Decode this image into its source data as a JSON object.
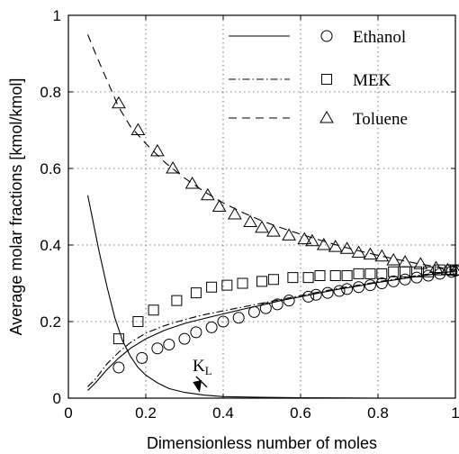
{
  "chart_data": {
    "type": "line",
    "title": "",
    "xlabel": "Dimensionless number of moles",
    "ylabel": "Average molar fractions [kmol/kmol]",
    "xlim": [
      0,
      1
    ],
    "ylim": [
      0,
      1
    ],
    "xticks": [
      "0",
      "0.2",
      "0.4",
      "0.6",
      "0.8",
      "1"
    ],
    "yticks": [
      "0",
      "0.2",
      "0.4",
      "0.6",
      "0.8",
      "1"
    ],
    "grid": true,
    "legend_position": "top-right",
    "legend": [
      {
        "name": "Ethanol",
        "line": "solid",
        "marker": "circle"
      },
      {
        "name": "MEK",
        "line": "dash-dot",
        "marker": "square"
      },
      {
        "name": "Toluene",
        "line": "dashed",
        "marker": "triangle"
      }
    ],
    "series": [
      {
        "name": "Ethanol",
        "kind": "model",
        "line": "solid",
        "points": [
          [
            0.05,
            0.02
          ],
          [
            0.07,
            0.04
          ],
          [
            0.1,
            0.075
          ],
          [
            0.13,
            0.105
          ],
          [
            0.16,
            0.13
          ],
          [
            0.2,
            0.155
          ],
          [
            0.25,
            0.178
          ],
          [
            0.3,
            0.195
          ],
          [
            0.35,
            0.208
          ],
          [
            0.4,
            0.22
          ],
          [
            0.45,
            0.232
          ],
          [
            0.5,
            0.243
          ],
          [
            0.55,
            0.255
          ],
          [
            0.6,
            0.265
          ],
          [
            0.65,
            0.275
          ],
          [
            0.7,
            0.285
          ],
          [
            0.75,
            0.293
          ],
          [
            0.8,
            0.302
          ],
          [
            0.85,
            0.31
          ],
          [
            0.9,
            0.318
          ],
          [
            0.95,
            0.325
          ],
          [
            1.0,
            0.332
          ]
        ]
      },
      {
        "name": "MEK",
        "kind": "model",
        "line": "dash-dot",
        "points": [
          [
            0.05,
            0.03
          ],
          [
            0.07,
            0.05
          ],
          [
            0.1,
            0.09
          ],
          [
            0.13,
            0.12
          ],
          [
            0.16,
            0.145
          ],
          [
            0.2,
            0.17
          ],
          [
            0.25,
            0.19
          ],
          [
            0.3,
            0.205
          ],
          [
            0.35,
            0.218
          ],
          [
            0.4,
            0.228
          ],
          [
            0.45,
            0.238
          ],
          [
            0.5,
            0.248
          ],
          [
            0.55,
            0.258
          ],
          [
            0.6,
            0.268
          ],
          [
            0.65,
            0.278
          ],
          [
            0.7,
            0.287
          ],
          [
            0.75,
            0.295
          ],
          [
            0.8,
            0.304
          ],
          [
            0.85,
            0.312
          ],
          [
            0.9,
            0.32
          ],
          [
            0.95,
            0.327
          ],
          [
            1.0,
            0.333
          ]
        ]
      },
      {
        "name": "Toluene",
        "kind": "model",
        "line": "dashed",
        "points": [
          [
            0.05,
            0.95
          ],
          [
            0.07,
            0.9
          ],
          [
            0.1,
            0.83
          ],
          [
            0.13,
            0.76
          ],
          [
            0.16,
            0.71
          ],
          [
            0.2,
            0.665
          ],
          [
            0.25,
            0.615
          ],
          [
            0.3,
            0.575
          ],
          [
            0.35,
            0.54
          ],
          [
            0.4,
            0.51
          ],
          [
            0.45,
            0.485
          ],
          [
            0.5,
            0.463
          ],
          [
            0.55,
            0.445
          ],
          [
            0.6,
            0.428
          ],
          [
            0.65,
            0.413
          ],
          [
            0.7,
            0.398
          ],
          [
            0.75,
            0.385
          ],
          [
            0.8,
            0.373
          ],
          [
            0.85,
            0.362
          ],
          [
            0.9,
            0.352
          ],
          [
            0.95,
            0.343
          ],
          [
            1.0,
            0.335
          ]
        ]
      },
      {
        "name": "KL",
        "kind": "model",
        "line": "solid",
        "points": [
          [
            0.05,
            0.53
          ],
          [
            0.06,
            0.48
          ],
          [
            0.08,
            0.38
          ],
          [
            0.1,
            0.29
          ],
          [
            0.12,
            0.21
          ],
          [
            0.14,
            0.15
          ],
          [
            0.16,
            0.11
          ],
          [
            0.18,
            0.08
          ],
          [
            0.2,
            0.06
          ],
          [
            0.23,
            0.04
          ],
          [
            0.26,
            0.025
          ],
          [
            0.3,
            0.015
          ],
          [
            0.35,
            0.008
          ],
          [
            0.4,
            0.004
          ],
          [
            0.5,
            0.002
          ],
          [
            0.6,
            0.001
          ],
          [
            0.8,
            0.0
          ],
          [
            1.0,
            0.0
          ]
        ]
      },
      {
        "name": "Ethanol",
        "kind": "measured",
        "marker": "circle",
        "points": [
          [
            0.13,
            0.08
          ],
          [
            0.19,
            0.105
          ],
          [
            0.23,
            0.13
          ],
          [
            0.26,
            0.14
          ],
          [
            0.3,
            0.155
          ],
          [
            0.33,
            0.172
          ],
          [
            0.37,
            0.185
          ],
          [
            0.4,
            0.2
          ],
          [
            0.44,
            0.21
          ],
          [
            0.48,
            0.225
          ],
          [
            0.51,
            0.235
          ],
          [
            0.54,
            0.245
          ],
          [
            0.57,
            0.255
          ],
          [
            0.62,
            0.265
          ],
          [
            0.64,
            0.27
          ],
          [
            0.67,
            0.275
          ],
          [
            0.7,
            0.28
          ],
          [
            0.72,
            0.285
          ],
          [
            0.75,
            0.29
          ],
          [
            0.78,
            0.295
          ],
          [
            0.81,
            0.3
          ],
          [
            0.84,
            0.305
          ],
          [
            0.87,
            0.31
          ],
          [
            0.9,
            0.315
          ],
          [
            0.93,
            0.32
          ],
          [
            0.96,
            0.325
          ],
          [
            0.99,
            0.33
          ],
          [
            1.0,
            0.333
          ]
        ]
      },
      {
        "name": "MEK",
        "kind": "measured",
        "marker": "square",
        "points": [
          [
            0.13,
            0.155
          ],
          [
            0.18,
            0.2
          ],
          [
            0.22,
            0.23
          ],
          [
            0.28,
            0.255
          ],
          [
            0.33,
            0.275
          ],
          [
            0.37,
            0.29
          ],
          [
            0.41,
            0.295
          ],
          [
            0.45,
            0.3
          ],
          [
            0.5,
            0.305
          ],
          [
            0.53,
            0.31
          ],
          [
            0.58,
            0.315
          ],
          [
            0.62,
            0.315
          ],
          [
            0.65,
            0.32
          ],
          [
            0.69,
            0.32
          ],
          [
            0.72,
            0.32
          ],
          [
            0.75,
            0.325
          ],
          [
            0.78,
            0.325
          ],
          [
            0.81,
            0.325
          ],
          [
            0.84,
            0.33
          ],
          [
            0.87,
            0.33
          ],
          [
            0.9,
            0.33
          ],
          [
            0.93,
            0.33
          ],
          [
            0.96,
            0.335
          ],
          [
            0.99,
            0.335
          ],
          [
            1.0,
            0.335
          ]
        ]
      },
      {
        "name": "Toluene",
        "kind": "measured",
        "marker": "triangle",
        "points": [
          [
            0.13,
            0.77
          ],
          [
            0.18,
            0.7
          ],
          [
            0.23,
            0.645
          ],
          [
            0.27,
            0.6
          ],
          [
            0.32,
            0.56
          ],
          [
            0.36,
            0.53
          ],
          [
            0.39,
            0.5
          ],
          [
            0.43,
            0.48
          ],
          [
            0.47,
            0.46
          ],
          [
            0.5,
            0.445
          ],
          [
            0.53,
            0.435
          ],
          [
            0.57,
            0.425
          ],
          [
            0.61,
            0.415
          ],
          [
            0.63,
            0.41
          ],
          [
            0.66,
            0.4
          ],
          [
            0.69,
            0.395
          ],
          [
            0.72,
            0.39
          ],
          [
            0.75,
            0.38
          ],
          [
            0.78,
            0.375
          ],
          [
            0.81,
            0.37
          ],
          [
            0.84,
            0.36
          ],
          [
            0.87,
            0.355
          ],
          [
            0.91,
            0.35
          ],
          [
            0.95,
            0.34
          ],
          [
            0.98,
            0.335
          ],
          [
            1.0,
            0.333
          ]
        ]
      }
    ],
    "annotations": [
      {
        "text": "K",
        "subscript": "L",
        "arrow_to": [
          0.33,
          0.01
        ]
      }
    ]
  }
}
